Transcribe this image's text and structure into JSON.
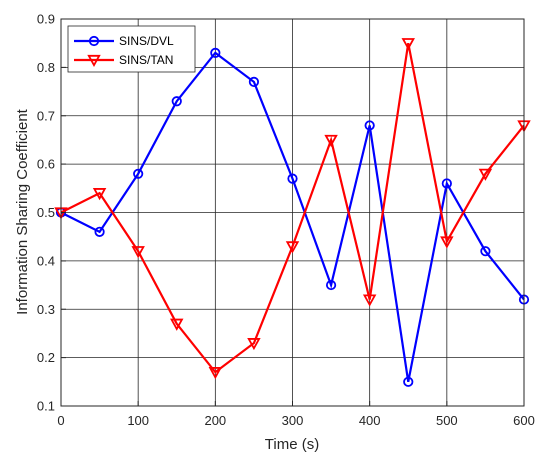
{
  "chart_data": {
    "type": "line",
    "title": "",
    "xlabel": "Time (s)",
    "ylabel": "Information Sharing Coefficient",
    "xlim": [
      0,
      600
    ],
    "ylim": [
      0.1,
      0.9
    ],
    "grid": true,
    "legend_position": "top-left",
    "x_ticks": [
      "0",
      "100",
      "200",
      "300",
      "400",
      "500",
      "600"
    ],
    "y_ticks": [
      "0.1",
      "0.2",
      "0.3",
      "0.4",
      "0.5",
      "0.6",
      "0.7",
      "0.8",
      "0.9"
    ],
    "x": [
      0,
      50,
      100,
      150,
      200,
      250,
      300,
      350,
      400,
      450,
      500,
      550,
      600
    ],
    "series": [
      {
        "name": "SINS/DVL",
        "color": "#0000ff",
        "marker": "circle",
        "values": [
          0.5,
          0.46,
          0.58,
          0.73,
          0.83,
          0.77,
          0.57,
          0.35,
          0.68,
          0.15,
          0.56,
          0.42,
          0.32
        ]
      },
      {
        "name": "SINS/TAN",
        "color": "#ff0000",
        "marker": "triangle-down",
        "values": [
          0.5,
          0.54,
          0.42,
          0.27,
          0.17,
          0.23,
          0.43,
          0.65,
          0.32,
          0.85,
          0.44,
          0.58,
          0.68
        ]
      }
    ]
  }
}
